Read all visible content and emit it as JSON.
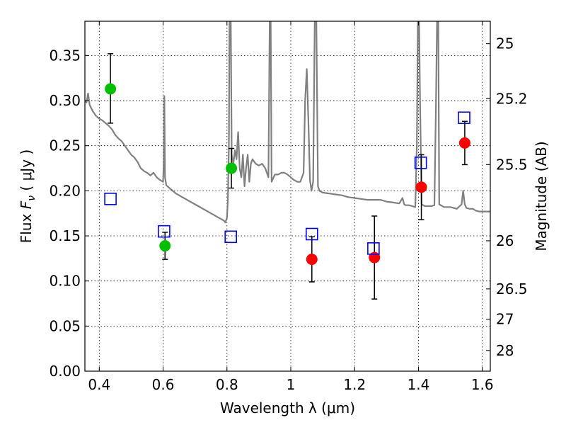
{
  "chart_data": {
    "type": "scatter",
    "xlabel": "Wavelength  λ (μm)",
    "ylabel": "Flux  Fν  ( μJy )",
    "ylabel_parts": {
      "pre": "Flux  ",
      "sym": "F",
      "sub": "ν",
      "post": "  (  μJy )"
    },
    "y2label": "Magnitude (AB)",
    "xlim": [
      0.355,
      1.625
    ],
    "ylim": [
      0.0,
      0.388
    ],
    "grid": true,
    "x_ticks": [
      {
        "value": 0.4,
        "label": "0.4"
      },
      {
        "value": 0.6,
        "label": "0.6"
      },
      {
        "value": 0.8,
        "label": "0.8"
      },
      {
        "value": 1.0,
        "label": "1"
      },
      {
        "value": 1.2,
        "label": "1.2"
      },
      {
        "value": 1.4,
        "label": "1.4"
      },
      {
        "value": 1.6,
        "label": "1.6"
      }
    ],
    "y_ticks": [
      {
        "value": 0.0,
        "label": "0.00"
      },
      {
        "value": 0.05,
        "label": "0.05"
      },
      {
        "value": 0.1,
        "label": "0.10"
      },
      {
        "value": 0.15,
        "label": "0.15"
      },
      {
        "value": 0.2,
        "label": "0.20"
      },
      {
        "value": 0.25,
        "label": "0.25"
      },
      {
        "value": 0.3,
        "label": "0.30"
      },
      {
        "value": 0.35,
        "label": "0.35"
      }
    ],
    "y2_ticks": [
      {
        "value": 25.0,
        "label": "25"
      },
      {
        "value": 25.2,
        "label": "25.2"
      },
      {
        "value": 25.5,
        "label": "25.5"
      },
      {
        "value": 26.0,
        "label": "26"
      },
      {
        "value": 26.5,
        "label": "26.5"
      },
      {
        "value": 27.0,
        "label": "27"
      },
      {
        "value": 28.0,
        "label": "28"
      }
    ],
    "colors": {
      "model": "#808080",
      "green": "#00bf00",
      "red": "#ff0000",
      "box": "#0000ff",
      "errorbar": "#000000"
    },
    "series": [
      {
        "style": "model-line",
        "color": "#808080",
        "points": [
          [
            0.355,
            0.3
          ],
          [
            0.36,
            0.298
          ],
          [
            0.365,
            0.308
          ],
          [
            0.37,
            0.295
          ],
          [
            0.38,
            0.288
          ],
          [
            0.39,
            0.283
          ],
          [
            0.4,
            0.28
          ],
          [
            0.41,
            0.278
          ],
          [
            0.42,
            0.275
          ],
          [
            0.43,
            0.272
          ],
          [
            0.44,
            0.268
          ],
          [
            0.45,
            0.262
          ],
          [
            0.46,
            0.258
          ],
          [
            0.47,
            0.255
          ],
          [
            0.48,
            0.25
          ],
          [
            0.49,
            0.245
          ],
          [
            0.5,
            0.24
          ],
          [
            0.51,
            0.237
          ],
          [
            0.52,
            0.232
          ],
          [
            0.53,
            0.225
          ],
          [
            0.54,
            0.222
          ],
          [
            0.55,
            0.22
          ],
          [
            0.56,
            0.217
          ],
          [
            0.57,
            0.22
          ],
          [
            0.58,
            0.215
          ],
          [
            0.59,
            0.212
          ],
          [
            0.6,
            0.21
          ],
          [
            0.602,
            0.23
          ],
          [
            0.604,
            0.305
          ],
          [
            0.606,
            0.215
          ],
          [
            0.61,
            0.206
          ],
          [
            0.62,
            0.203
          ],
          [
            0.63,
            0.2
          ],
          [
            0.64,
            0.197
          ],
          [
            0.65,
            0.195
          ],
          [
            0.66,
            0.193
          ],
          [
            0.67,
            0.191
          ],
          [
            0.68,
            0.189
          ],
          [
            0.69,
            0.187
          ],
          [
            0.7,
            0.185
          ],
          [
            0.71,
            0.183
          ],
          [
            0.72,
            0.181
          ],
          [
            0.73,
            0.179
          ],
          [
            0.74,
            0.177
          ],
          [
            0.75,
            0.175
          ],
          [
            0.76,
            0.173
          ],
          [
            0.77,
            0.171
          ],
          [
            0.78,
            0.169
          ],
          [
            0.79,
            0.167
          ],
          [
            0.795,
            0.165
          ],
          [
            0.8,
            0.17
          ],
          [
            0.803,
            0.19
          ],
          [
            0.806,
            0.25
          ],
          [
            0.808,
            0.39
          ],
          [
            0.812,
            0.39
          ],
          [
            0.815,
            0.24
          ],
          [
            0.82,
            0.23
          ],
          [
            0.825,
            0.245
          ],
          [
            0.83,
            0.235
          ],
          [
            0.835,
            0.265
          ],
          [
            0.84,
            0.225
          ],
          [
            0.845,
            0.215
          ],
          [
            0.85,
            0.24
          ],
          [
            0.855,
            0.205
          ],
          [
            0.86,
            0.225
          ],
          [
            0.865,
            0.24
          ],
          [
            0.87,
            0.21
          ],
          [
            0.875,
            0.23
          ],
          [
            0.88,
            0.235
          ],
          [
            0.89,
            0.23
          ],
          [
            0.9,
            0.228
          ],
          [
            0.91,
            0.23
          ],
          [
            0.92,
            0.225
          ],
          [
            0.93,
            0.215
          ],
          [
            0.934,
            0.39
          ],
          [
            0.937,
            0.39
          ],
          [
            0.94,
            0.21
          ],
          [
            0.95,
            0.218
          ],
          [
            0.96,
            0.218
          ],
          [
            0.97,
            0.22
          ],
          [
            0.98,
            0.22
          ],
          [
            0.99,
            0.218
          ],
          [
            1.0,
            0.215
          ],
          [
            1.01,
            0.212
          ],
          [
            1.02,
            0.21
          ],
          [
            1.03,
            0.21
          ],
          [
            1.04,
            0.22
          ],
          [
            1.045,
            0.3
          ],
          [
            1.05,
            0.335
          ],
          [
            1.055,
            0.28
          ],
          [
            1.06,
            0.212
          ],
          [
            1.065,
            0.2
          ],
          [
            1.07,
            0.21
          ],
          [
            1.075,
            0.39
          ],
          [
            1.08,
            0.39
          ],
          [
            1.085,
            0.205
          ],
          [
            1.09,
            0.2
          ],
          [
            1.1,
            0.198
          ],
          [
            1.12,
            0.197
          ],
          [
            1.14,
            0.196
          ],
          [
            1.16,
            0.195
          ],
          [
            1.18,
            0.193
          ],
          [
            1.2,
            0.192
          ],
          [
            1.22,
            0.191
          ],
          [
            1.24,
            0.19
          ],
          [
            1.26,
            0.19
          ],
          [
            1.28,
            0.19
          ],
          [
            1.3,
            0.188
          ],
          [
            1.32,
            0.187
          ],
          [
            1.34,
            0.186
          ],
          [
            1.35,
            0.192
          ],
          [
            1.355,
            0.185
          ],
          [
            1.36,
            0.184
          ],
          [
            1.37,
            0.184
          ],
          [
            1.38,
            0.183
          ],
          [
            1.39,
            0.182
          ],
          [
            1.395,
            0.25
          ],
          [
            1.398,
            0.39
          ],
          [
            1.402,
            0.39
          ],
          [
            1.405,
            0.3
          ],
          [
            1.41,
            0.185
          ],
          [
            1.42,
            0.183
          ],
          [
            1.43,
            0.183
          ],
          [
            1.44,
            0.183
          ],
          [
            1.45,
            0.184
          ],
          [
            1.455,
            0.3
          ],
          [
            1.458,
            0.39
          ],
          [
            1.462,
            0.39
          ],
          [
            1.465,
            0.185
          ],
          [
            1.48,
            0.182
          ],
          [
            1.5,
            0.182
          ],
          [
            1.52,
            0.18
          ],
          [
            1.535,
            0.185
          ],
          [
            1.54,
            0.2
          ],
          [
            1.545,
            0.185
          ],
          [
            1.55,
            0.181
          ],
          [
            1.56,
            0.18
          ],
          [
            1.57,
            0.18
          ],
          [
            1.58,
            0.178
          ],
          [
            1.59,
            0.177
          ],
          [
            1.6,
            0.177
          ],
          [
            1.61,
            0.177
          ],
          [
            1.625,
            0.177
          ]
        ]
      },
      {
        "style": "filled-circle",
        "color": "#00bf00",
        "points": [
          {
            "x": 0.435,
            "y": 0.313,
            "y_low": 0.275,
            "y_high": 0.352
          },
          {
            "x": 0.606,
            "y": 0.139,
            "y_low": 0.124,
            "y_high": 0.154
          },
          {
            "x": 0.814,
            "y": 0.225,
            "y_low": 0.203,
            "y_high": 0.247
          }
        ]
      },
      {
        "style": "filled-circle",
        "color": "#ff0000",
        "points": [
          {
            "x": 1.066,
            "y": 0.124,
            "y_low": 0.099,
            "y_high": 0.149
          },
          {
            "x": 1.262,
            "y": 0.126,
            "y_low": 0.08,
            "y_high": 0.172
          },
          {
            "x": 1.409,
            "y": 0.204,
            "y_low": 0.168,
            "y_high": 0.24
          },
          {
            "x": 1.545,
            "y": 0.253,
            "y_low": 0.229,
            "y_high": 0.277
          }
        ]
      },
      {
        "style": "open-square",
        "color": "#0000ff",
        "points": [
          {
            "x": 0.435,
            "y": 0.191
          },
          {
            "x": 0.603,
            "y": 0.155
          },
          {
            "x": 0.812,
            "y": 0.149
          },
          {
            "x": 1.066,
            "y": 0.152
          },
          {
            "x": 1.259,
            "y": 0.136
          },
          {
            "x": 1.407,
            "y": 0.231
          },
          {
            "x": 1.543,
            "y": 0.281
          }
        ]
      }
    ]
  }
}
